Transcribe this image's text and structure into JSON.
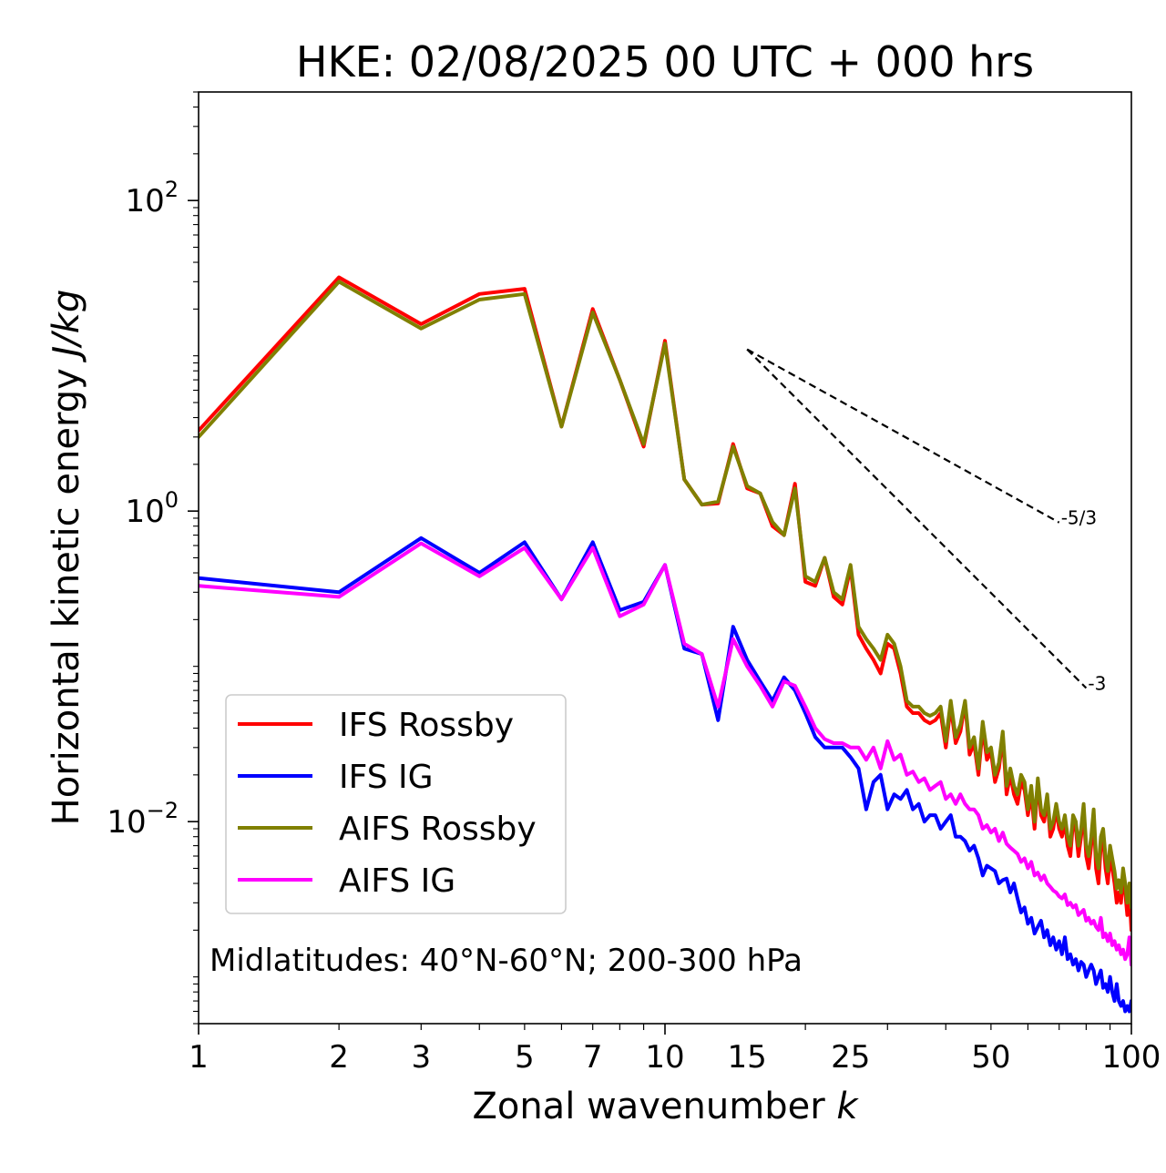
{
  "chart_data": {
    "type": "line",
    "title": "HKE: 02/08/2025 00 UTC + 000 hrs",
    "xlabel_text": "Zonal wavenumber ",
    "xlabel_var": "k",
    "ylabel_text": "Horizontal kinetic energy ",
    "ylabel_unit": "J/kg",
    "xscale": "log",
    "yscale": "log",
    "xlim": [
      1,
      100
    ],
    "ylim": [
      0.0005,
      500
    ],
    "xticks": [
      {
        "value": 1,
        "label": "1"
      },
      {
        "value": 2,
        "label": "2"
      },
      {
        "value": 3,
        "label": "3"
      },
      {
        "value": 5,
        "label": "5"
      },
      {
        "value": 7,
        "label": "7"
      },
      {
        "value": 10,
        "label": "10"
      },
      {
        "value": 15,
        "label": "15"
      },
      {
        "value": 25,
        "label": "25"
      },
      {
        "value": 50,
        "label": "50"
      },
      {
        "value": 100,
        "label": "100"
      }
    ],
    "yticks": [
      {
        "value": 100,
        "base": "10",
        "exp": "2"
      },
      {
        "value": 1,
        "base": "10",
        "exp": "0"
      },
      {
        "value": 0.01,
        "base": "10",
        "exp": "−2"
      }
    ],
    "annotation": "Midlatitudes: 40°N-60°N; 200-300 hPa",
    "legend_position": "lower-left",
    "reference_lines": [
      {
        "label": "-5/3",
        "slope": -1.6667,
        "x_start": 15,
        "y_start": 11,
        "x_end": 70,
        "color": "#000000"
      },
      {
        "label": "-3",
        "slope": -3,
        "x_start": 15,
        "y_start": 11,
        "x_end": 80,
        "color": "#000000"
      }
    ],
    "x": [
      1,
      2,
      3,
      4,
      5,
      6,
      7,
      8,
      9,
      10,
      11,
      12,
      13,
      14,
      15,
      16,
      17,
      18,
      19,
      20,
      21,
      22,
      23,
      24,
      25,
      26,
      27,
      28,
      29,
      30,
      31,
      32,
      33,
      34,
      35,
      36,
      37,
      38,
      39,
      40,
      41,
      42,
      43,
      44,
      45,
      46,
      47,
      48,
      49,
      50,
      51,
      52,
      53,
      54,
      55,
      56,
      57,
      58,
      59,
      60,
      61,
      62,
      63,
      64,
      65,
      66,
      67,
      68,
      69,
      70,
      71,
      72,
      73,
      74,
      75,
      76,
      77,
      78,
      79,
      80,
      81,
      82,
      83,
      84,
      85,
      86,
      87,
      88,
      89,
      90,
      91,
      92,
      93,
      94,
      95,
      96,
      97,
      98,
      99,
      100
    ],
    "series": [
      {
        "name": "IFS Rossby",
        "color": "#ff0000",
        "values": [
          3.3,
          32,
          16,
          25,
          27,
          3.5,
          20,
          7,
          2.6,
          12.5,
          1.6,
          1.1,
          1.12,
          2.7,
          1.4,
          1.3,
          0.8,
          0.7,
          1.5,
          0.35,
          0.33,
          0.5,
          0.28,
          0.25,
          0.43,
          0.16,
          0.13,
          0.11,
          0.09,
          0.14,
          0.13,
          0.09,
          0.055,
          0.05,
          0.05,
          0.045,
          0.043,
          0.045,
          0.05,
          0.03,
          0.055,
          0.032,
          0.038,
          0.058,
          0.027,
          0.032,
          0.02,
          0.04,
          0.025,
          0.028,
          0.018,
          0.022,
          0.035,
          0.015,
          0.02,
          0.015,
          0.013,
          0.018,
          0.016,
          0.011,
          0.015,
          0.009,
          0.018,
          0.011,
          0.01,
          0.014,
          0.008,
          0.009,
          0.012,
          0.009,
          0.008,
          0.01,
          0.007,
          0.006,
          0.01,
          0.009,
          0.006,
          0.008,
          0.012,
          0.006,
          0.005,
          0.007,
          0.011,
          0.005,
          0.004,
          0.007,
          0.008,
          0.005,
          0.004,
          0.006,
          0.005,
          0.004,
          0.003,
          0.0035,
          0.003,
          0.0045,
          0.0035,
          0.0025,
          0.0035,
          0.002
        ]
      },
      {
        "name": "IFS IG",
        "color": "#0000ff",
        "values": [
          0.37,
          0.3,
          0.67,
          0.4,
          0.63,
          0.27,
          0.63,
          0.23,
          0.26,
          0.45,
          0.13,
          0.12,
          0.045,
          0.18,
          0.11,
          0.08,
          0.06,
          0.085,
          0.07,
          0.05,
          0.035,
          0.03,
          0.03,
          0.03,
          0.026,
          0.022,
          0.012,
          0.018,
          0.02,
          0.012,
          0.015,
          0.014,
          0.016,
          0.012,
          0.013,
          0.01,
          0.011,
          0.011,
          0.009,
          0.01,
          0.011,
          0.008,
          0.008,
          0.0075,
          0.0065,
          0.007,
          0.0058,
          0.0045,
          0.0052,
          0.005,
          0.0048,
          0.004,
          0.0042,
          0.0043,
          0.0035,
          0.004,
          0.0032,
          0.0026,
          0.0028,
          0.0022,
          0.0024,
          0.0019,
          0.0021,
          0.0023,
          0.0018,
          0.002,
          0.0016,
          0.0018,
          0.0015,
          0.0017,
          0.0014,
          0.0018,
          0.0013,
          0.0014,
          0.0012,
          0.0013,
          0.0011,
          0.00125,
          0.0012,
          0.001,
          0.0011,
          0.0012,
          0.0011,
          0.0009,
          0.001,
          0.0011,
          0.00085,
          0.0009,
          0.0008,
          0.001,
          0.0008,
          0.0007,
          0.0009,
          0.0007,
          0.00065,
          0.0007,
          0.0006,
          0.00065,
          0.0006,
          0.0007
        ]
      },
      {
        "name": "AIFS Rossby",
        "color": "#808000",
        "values": [
          3,
          30,
          15,
          23,
          25,
          3.5,
          19,
          7,
          2.7,
          12,
          1.6,
          1.1,
          1.15,
          2.6,
          1.45,
          1.3,
          0.85,
          0.7,
          1.4,
          0.38,
          0.35,
          0.5,
          0.3,
          0.27,
          0.45,
          0.18,
          0.15,
          0.13,
          0.11,
          0.16,
          0.14,
          0.1,
          0.06,
          0.055,
          0.055,
          0.05,
          0.048,
          0.05,
          0.055,
          0.033,
          0.06,
          0.035,
          0.042,
          0.06,
          0.03,
          0.035,
          0.022,
          0.044,
          0.028,
          0.03,
          0.02,
          0.024,
          0.038,
          0.017,
          0.022,
          0.017,
          0.015,
          0.02,
          0.018,
          0.012,
          0.017,
          0.01,
          0.019,
          0.012,
          0.011,
          0.015,
          0.009,
          0.01,
          0.013,
          0.01,
          0.009,
          0.011,
          0.008,
          0.007,
          0.011,
          0.01,
          0.007,
          0.009,
          0.013,
          0.007,
          0.006,
          0.008,
          0.012,
          0.006,
          0.005,
          0.008,
          0.009,
          0.006,
          0.0048,
          0.007,
          0.0058,
          0.0048,
          0.0037,
          0.0042,
          0.0035,
          0.005,
          0.004,
          0.003,
          0.004,
          0.0028
        ]
      },
      {
        "name": "AIFS IG",
        "color": "#ff00ff",
        "values": [
          0.33,
          0.28,
          0.62,
          0.38,
          0.58,
          0.27,
          0.58,
          0.21,
          0.25,
          0.45,
          0.14,
          0.12,
          0.055,
          0.15,
          0.1,
          0.075,
          0.055,
          0.08,
          0.075,
          0.055,
          0.04,
          0.034,
          0.032,
          0.032,
          0.03,
          0.03,
          0.025,
          0.03,
          0.022,
          0.033,
          0.025,
          0.027,
          0.02,
          0.021,
          0.018,
          0.019,
          0.016,
          0.017,
          0.018,
          0.014,
          0.015,
          0.013,
          0.015,
          0.013,
          0.012,
          0.012,
          0.011,
          0.009,
          0.0095,
          0.0085,
          0.009,
          0.0075,
          0.0085,
          0.0072,
          0.0068,
          0.0065,
          0.0062,
          0.0055,
          0.0058,
          0.005,
          0.0055,
          0.0045,
          0.0047,
          0.0042,
          0.0045,
          0.004,
          0.0038,
          0.0036,
          0.0035,
          0.0033,
          0.0032,
          0.0034,
          0.0029,
          0.003,
          0.0028,
          0.0029,
          0.0025,
          0.0026,
          0.0027,
          0.0023,
          0.0024,
          0.0022,
          0.0023,
          0.0021,
          0.002,
          0.0024,
          0.0018,
          0.0019,
          0.0017,
          0.0019,
          0.0016,
          0.0017,
          0.0015,
          0.0016,
          0.0014,
          0.0015,
          0.0013,
          0.0014,
          0.0018,
          0.0012
        ]
      }
    ]
  }
}
